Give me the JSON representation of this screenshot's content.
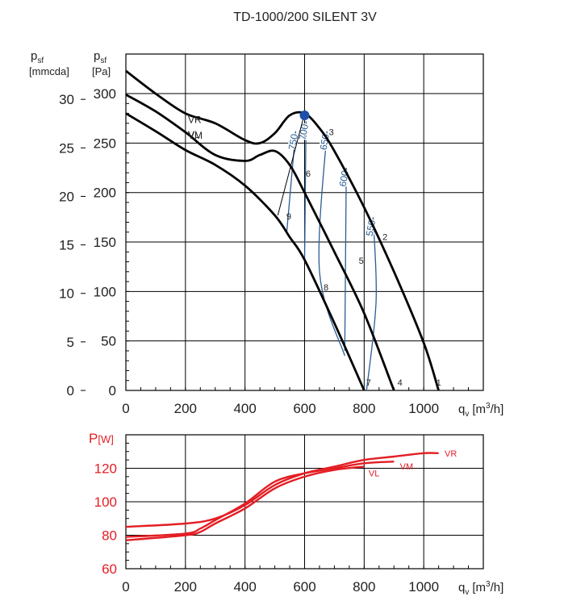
{
  "title": "TD-1000/200 SILENT 3V",
  "colors": {
    "axis": "#000000",
    "curve": "#000000",
    "iso": "#2b5d95",
    "point": "#1f4fa8",
    "power": "#e31e24"
  },
  "chart_data": [
    {
      "type": "line",
      "title": "TD-1000/200 SILENT 3V",
      "ylabel_left": {
        "symbol": "p",
        "sub": "sf",
        "unit": "[mmcda]"
      },
      "ylabel_right": {
        "symbol": "p",
        "sub": "sf",
        "unit": "[Pa]"
      },
      "xlabel": {
        "symbol": "q",
        "sub": "v",
        "unit_pre": "[m",
        "unit_sup": "3",
        "unit_post": "/h]"
      },
      "xlim": [
        0,
        1200
      ],
      "ylim": [
        0,
        340
      ],
      "x_ticks": [
        0,
        200,
        400,
        600,
        800,
        1000
      ],
      "y_ticks_pa": [
        0,
        50,
        100,
        150,
        200,
        250,
        300
      ],
      "y_ticks_mmcda": [
        0,
        5,
        10,
        15,
        20,
        25,
        30
      ],
      "grid": true,
      "series": [
        {
          "name": "VR",
          "x": [
            0,
            100,
            200,
            300,
            400,
            450,
            500,
            550,
            600,
            650,
            700,
            800,
            900,
            1000,
            1050
          ],
          "y": [
            323,
            300,
            280,
            270,
            253,
            250,
            260,
            278,
            280,
            265,
            242,
            185,
            120,
            48,
            0
          ]
        },
        {
          "name": "VM",
          "x": [
            0,
            100,
            200,
            300,
            400,
            450,
            500,
            550,
            600,
            700,
            800,
            900
          ],
          "y": [
            299,
            282,
            261,
            238,
            232,
            238,
            242,
            228,
            200,
            140,
            78,
            0
          ]
        },
        {
          "name": "VL",
          "x": [
            0,
            100,
            200,
            300,
            400,
            500,
            550,
            600,
            700,
            800
          ],
          "y": [
            280,
            262,
            243,
            228,
            207,
            177,
            155,
            132,
            68,
            0
          ]
        }
      ],
      "iso_rpm": [
        {
          "label": "750",
          "x": [
            540,
            570
          ],
          "y": [
            160,
            262
          ]
        },
        {
          "label": "700",
          "x": [
            600,
            605
          ],
          "y": [
            130,
            272
          ]
        },
        {
          "label": "650",
          "x": [
            735,
            650,
            675
          ],
          "y": [
            35,
            120,
            262
          ]
        },
        {
          "label": "600",
          "x": [
            735,
            740
          ],
          "y": [
            40,
            225
          ]
        },
        {
          "label": "550",
          "x": [
            808,
            840,
            830
          ],
          "y": [
            0,
            90,
            175
          ]
        }
      ],
      "system_curve": {
        "x": [
          510,
          600
        ],
        "y": [
          177,
          280
        ]
      },
      "operating_point": {
        "x": 600,
        "y": 278
      },
      "point_labels": [
        {
          "label": "1",
          "x": 1050,
          "y": 5
        },
        {
          "label": "2",
          "x": 870,
          "y": 152
        },
        {
          "label": "3",
          "x": 690,
          "y": 258
        },
        {
          "label": "4",
          "x": 920,
          "y": 5
        },
        {
          "label": "5",
          "x": 790,
          "y": 128
        },
        {
          "label": "6",
          "x": 612,
          "y": 216
        },
        {
          "label": "7",
          "x": 815,
          "y": 5
        },
        {
          "label": "8",
          "x": 672,
          "y": 101
        },
        {
          "label": "9",
          "x": 547,
          "y": 173
        }
      ]
    },
    {
      "type": "line",
      "ylabel": {
        "symbol": "P",
        "unit": "[W]"
      },
      "xlabel": {
        "symbol": "q",
        "sub": "v",
        "unit_pre": "[m",
        "unit_sup": "3",
        "unit_post": "/h]"
      },
      "xlim": [
        0,
        1200
      ],
      "ylim": [
        60,
        140
      ],
      "x_ticks": [
        0,
        200,
        400,
        600,
        800,
        1000
      ],
      "y_ticks": [
        60,
        80,
        100,
        120
      ],
      "grid": true,
      "series": [
        {
          "name": "VR",
          "x": [
            0,
            200,
            300,
            400,
            500,
            600,
            700,
            800,
            900,
            1000,
            1050
          ],
          "y": [
            85,
            87,
            90,
            98,
            110,
            117,
            121,
            125,
            127,
            129,
            129
          ]
        },
        {
          "name": "VM",
          "x": [
            0,
            200,
            250,
            300,
            400,
            500,
            600,
            700,
            800,
            900
          ],
          "y": [
            79,
            81,
            84,
            89,
            99,
            112,
            117,
            120,
            123,
            124
          ]
        },
        {
          "name": "VL",
          "x": [
            0,
            200,
            250,
            300,
            400,
            500,
            600,
            700,
            800
          ],
          "y": [
            77,
            80,
            82,
            87,
            96,
            108,
            115,
            119,
            121
          ]
        }
      ],
      "legend_positions": {
        "VR": {
          "x": 1070,
          "y": 129
        },
        "VM": {
          "x": 920,
          "y": 124
        },
        "VL": {
          "x": 815,
          "y": 120
        }
      }
    }
  ]
}
